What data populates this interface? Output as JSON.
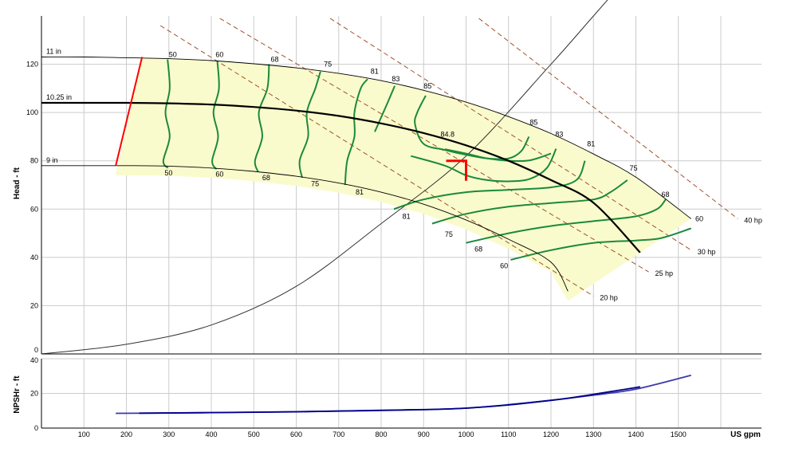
{
  "chart_data": [
    {
      "type": "line",
      "title": "",
      "xlabel": "US gpm",
      "ylabel": "Head - ft",
      "xlim": [
        0,
        1600
      ],
      "ylim": [
        0,
        140
      ],
      "x_ticks": [
        100,
        200,
        300,
        400,
        500,
        600,
        700,
        800,
        900,
        1000,
        1100,
        1200,
        1300,
        1400,
        1500
      ],
      "y_ticks": [
        0,
        20,
        40,
        60,
        80,
        100,
        120
      ],
      "grid": true,
      "colors": {
        "impeller": "#000000",
        "selected_impeller": "#000000",
        "efficiency": "#1a8a3c",
        "power": "#a0522d",
        "region_fill": "#fafbcc",
        "system_curve": "#333333",
        "min_flow_line": "#ff0000",
        "duty_point": "#ff0000"
      },
      "impeller_curves": [
        {
          "name": "11 in",
          "x": [
            0,
            100,
            200,
            300,
            400,
            500,
            600,
            700,
            800,
            900,
            1000,
            1100,
            1200,
            1300,
            1400,
            1530
          ],
          "y": [
            123,
            123,
            122.7,
            122.3,
            121.5,
            120.2,
            118.5,
            116.2,
            113.2,
            109.2,
            104.3,
            98.3,
            91.3,
            82.8,
            73.2,
            56
          ]
        },
        {
          "name": "10.25 in",
          "x": [
            0,
            100,
            200,
            300,
            400,
            500,
            600,
            700,
            800,
            900,
            1000,
            1100,
            1200,
            1300,
            1410
          ],
          "y": [
            104,
            104,
            104,
            103.8,
            103.3,
            102.3,
            100.8,
            98.6,
            95.5,
            91.5,
            86.4,
            80,
            72,
            62.6,
            42
          ]
        },
        {
          "name": "9 in",
          "x": [
            0,
            100,
            200,
            300,
            400,
            500,
            600,
            700,
            800,
            900,
            1000,
            1100,
            1200,
            1240
          ],
          "y": [
            78,
            78,
            78,
            77.8,
            77,
            75.6,
            73.6,
            70.8,
            67,
            62,
            55.5,
            47.5,
            38,
            26
          ]
        }
      ],
      "min_flow_line": {
        "x": [
          175,
          237
        ],
        "y": [
          78,
          123
        ]
      },
      "efficiency_contours": [
        {
          "label": "50",
          "x": [
            297,
            302,
            292,
            302,
            287,
            298
          ],
          "y": [
            122,
            110,
            100,
            90,
            80,
            77
          ]
        },
        {
          "label": "60",
          "x": [
            414,
            418,
            405,
            416,
            402,
            412
          ],
          "y": [
            121.5,
            110,
            100,
            90,
            80,
            76.5
          ]
        },
        {
          "label": "68",
          "x": [
            536,
            532,
            512,
            520,
            503,
            510
          ],
          "y": [
            120,
            110,
            100,
            90,
            80,
            75.5
          ]
        },
        {
          "label": "75",
          "x": [
            657,
            645,
            625,
            628,
            608,
            614
          ],
          "y": [
            117,
            110,
            100,
            90,
            80,
            73
          ]
        },
        {
          "label": "81",
          "x": [
            768,
            752,
            737,
            737,
            720,
            715
          ],
          "y": [
            113.8,
            110,
            100,
            90,
            80,
            70
          ]
        },
        {
          "label": "83",
          "x": [
            832,
            815,
            795,
            785
          ],
          "y": [
            111,
            104,
            96,
            92
          ]
        },
        {
          "label": "85",
          "x": [
            905,
            885,
            880,
            900,
            950,
            1000,
            1050,
            1100,
            1130,
            1148
          ],
          "y": [
            107,
            100,
            95,
            87,
            84.5,
            82.5,
            81,
            81,
            84,
            90
          ]
        },
        {
          "label": "84.8",
          "x": [
            950,
            1000,
            1050,
            1100,
            1150,
            1200
          ],
          "y": [
            84.8,
            83,
            81,
            80,
            80.2,
            83
          ]
        },
        {
          "label": "83",
          "x": [
            870,
            950,
            1000,
            1050,
            1100,
            1150,
            1190,
            1212
          ],
          "y": [
            82,
            78,
            74,
            72,
            71.5,
            72.5,
            77,
            85
          ]
        },
        {
          "label": "81",
          "x": [
            830,
            900,
            1000,
            1100,
            1200,
            1260,
            1280
          ],
          "y": [
            60,
            64,
            67,
            68,
            69,
            72,
            80
          ]
        },
        {
          "label": "75",
          "x": [
            920,
            1000,
            1100,
            1200,
            1300,
            1340,
            1380
          ],
          "y": [
            54,
            58,
            61,
            62.5,
            64,
            67,
            72
          ]
        },
        {
          "label": "68",
          "x": [
            1000,
            1100,
            1200,
            1300,
            1400,
            1450,
            1470
          ],
          "y": [
            46,
            50,
            53,
            55,
            57,
            60,
            64
          ]
        },
        {
          "label": "60",
          "x": [
            1105,
            1200,
            1300,
            1400,
            1460,
            1530
          ],
          "y": [
            39,
            43,
            46,
            47,
            48,
            52
          ]
        }
      ],
      "power_lines": [
        {
          "label": "20 hp",
          "x": [
            280,
            1300
          ],
          "y": [
            136,
            24
          ]
        },
        {
          "label": "25 hp",
          "x": [
            420,
            1430
          ],
          "y": [
            139,
            34
          ]
        },
        {
          "label": "30 hp",
          "x": [
            680,
            1530
          ],
          "y": [
            139,
            43
          ]
        },
        {
          "label": "40 hp",
          "x": [
            1030,
            1640
          ],
          "y": [
            139,
            56
          ]
        }
      ],
      "system_curve": {
        "x": [
          0,
          200,
          400,
          600,
          800,
          1000,
          1200,
          1300,
          1400
        ],
        "y": [
          0,
          4,
          12,
          28,
          54,
          82,
          120,
          140,
          160
        ]
      },
      "duty_point": {
        "x": 1000,
        "y": 80
      },
      "upper_labels": [
        {
          "text": "50",
          "x": 300,
          "y": 123
        },
        {
          "text": "60",
          "x": 410,
          "y": 123
        },
        {
          "text": "68",
          "x": 540,
          "y": 121
        },
        {
          "text": "75",
          "x": 665,
          "y": 119
        },
        {
          "text": "81",
          "x": 775,
          "y": 116
        },
        {
          "text": "83",
          "x": 825,
          "y": 113
        },
        {
          "text": "85",
          "x": 900,
          "y": 110
        },
        {
          "text": "85",
          "x": 1150,
          "y": 95
        },
        {
          "text": "83",
          "x": 1210,
          "y": 90
        },
        {
          "text": "81",
          "x": 1285,
          "y": 86
        },
        {
          "text": "75",
          "x": 1385,
          "y": 76
        },
        {
          "text": "68",
          "x": 1460,
          "y": 65
        },
        {
          "text": "60",
          "x": 1540,
          "y": 55
        }
      ],
      "lower_labels": [
        {
          "text": "50",
          "x": 290,
          "y": 74
        },
        {
          "text": "60",
          "x": 410,
          "y": 73.5
        },
        {
          "text": "68",
          "x": 520,
          "y": 72
        },
        {
          "text": "75",
          "x": 635,
          "y": 69.5
        },
        {
          "text": "81",
          "x": 740,
          "y": 66
        },
        {
          "text": "81",
          "x": 850,
          "y": 56
        },
        {
          "text": "75",
          "x": 950,
          "y": 48.5
        },
        {
          "text": "68",
          "x": 1020,
          "y": 42.5
        },
        {
          "text": "60",
          "x": 1080,
          "y": 35.5
        },
        {
          "text": "84.8",
          "x": 940,
          "y": 90
        }
      ]
    },
    {
      "type": "line",
      "title": "",
      "xlabel": "US gpm",
      "ylabel": "NPSHr - ft",
      "xlim": [
        0,
        1600
      ],
      "ylim": [
        0,
        40
      ],
      "y_ticks": [
        0,
        20,
        40
      ],
      "series": [
        {
          "x": [
            175,
            300,
            500,
            700,
            900,
            1000,
            1100,
            1200,
            1300,
            1400,
            1530
          ],
          "y": [
            8.5,
            8.7,
            9.2,
            9.8,
            10.6,
            11.5,
            13.3,
            16,
            19,
            22.5,
            30.5
          ],
          "color": "#3a3aaa"
        },
        {
          "x": [
            230,
            400,
            600,
            800,
            1000,
            1200,
            1300,
            1410
          ],
          "y": [
            8.6,
            8.9,
            9.4,
            10.3,
            11.5,
            16,
            19.5,
            23.8
          ],
          "color": "#00008b"
        }
      ]
    }
  ]
}
